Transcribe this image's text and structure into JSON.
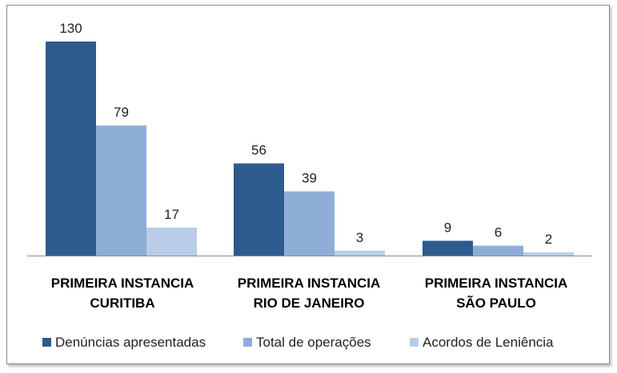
{
  "chart_data": {
    "type": "bar",
    "title": "",
    "xlabel": "",
    "ylabel": "",
    "ylim": [
      0,
      130
    ],
    "grid": false,
    "legend_position": "bottom",
    "categories": [
      [
        "PRIMEIRA INSTANCIA",
        "CURITIBA"
      ],
      [
        "PRIMEIRA INSTANCIA",
        "RIO DE JANEIRO"
      ],
      [
        "PRIMEIRA INSTANCIA",
        "SÃO PAULO"
      ]
    ],
    "series": [
      {
        "name": "Denúncias apresentadas",
        "color": "#2e5b8d",
        "values": [
          130,
          56,
          9
        ]
      },
      {
        "name": "Total de operações",
        "color": "#8eaed8",
        "values": [
          79,
          39,
          6
        ]
      },
      {
        "name": "Acordos de Leniência",
        "color": "#b9cde8",
        "values": [
          17,
          3,
          2
        ]
      }
    ]
  }
}
